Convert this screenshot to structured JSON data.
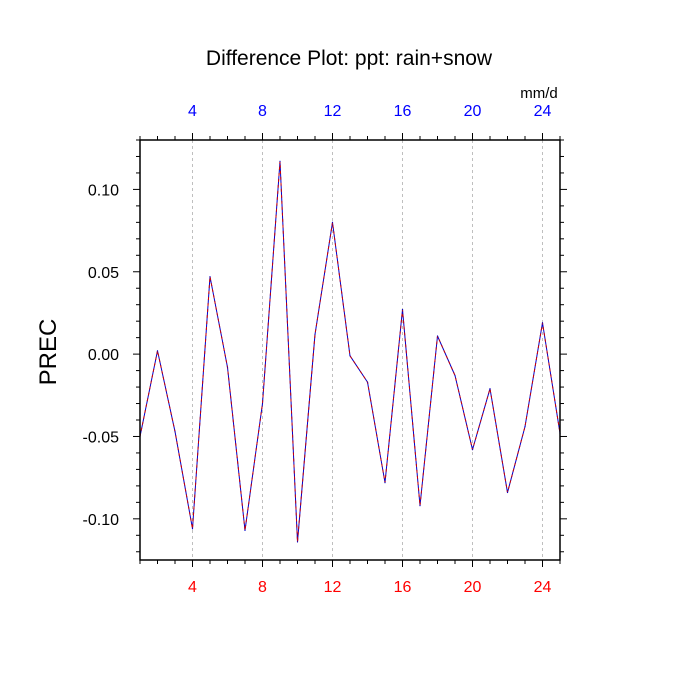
{
  "chart_data": {
    "type": "line",
    "title": "Difference Plot: ppt: rain+snow",
    "ylabel": "PREC",
    "units_label": "mm/d",
    "xlim": [
      1,
      25
    ],
    "ylim": [
      -0.125,
      0.13
    ],
    "x_ticks": [
      4,
      8,
      12,
      16,
      20,
      24
    ],
    "x_tick_labels": [
      "4",
      "8",
      "12",
      "16",
      "20",
      "24"
    ],
    "y_ticks": [
      -0.1,
      -0.05,
      0.0,
      0.05,
      0.1
    ],
    "y_tick_labels": [
      "-0.10",
      "-0.05",
      "0.00",
      "0.05",
      "0.10"
    ],
    "grid": "vertical dashed at major x ticks",
    "colors": {
      "bottom_axis_labels": "#ff0000",
      "top_axis_labels": "#0000ff",
      "line_primary": "#0000cc",
      "line_secondary": "#cc0000",
      "grid": "#b0b0b0"
    },
    "series": [
      {
        "x": [
          1,
          2,
          3,
          4,
          5,
          6,
          7,
          8,
          9,
          10,
          11,
          12,
          13,
          14,
          15,
          16,
          17,
          18,
          19,
          20,
          21,
          22,
          23,
          24,
          25
        ],
        "values": [
          -0.05,
          0.002,
          -0.047,
          -0.106,
          0.047,
          -0.008,
          -0.107,
          -0.03,
          0.117,
          -0.114,
          0.012,
          0.08,
          -0.001,
          -0.017,
          -0.078,
          0.027,
          -0.092,
          0.011,
          -0.013,
          -0.058,
          -0.021,
          -0.084,
          -0.044,
          0.019,
          -0.048
        ]
      }
    ]
  }
}
